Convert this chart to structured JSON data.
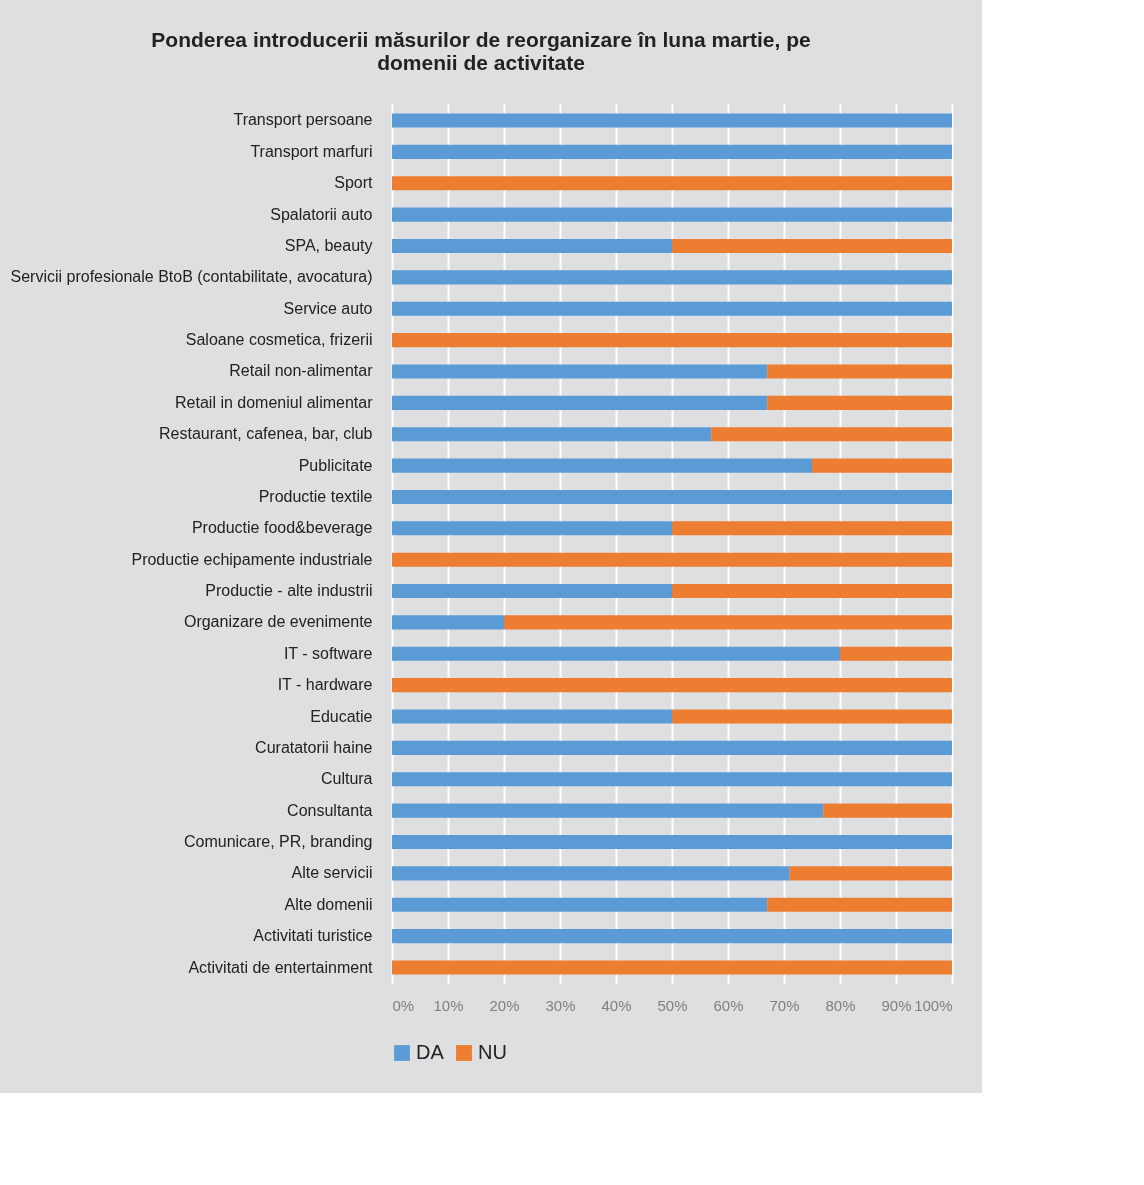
{
  "chart_data": {
    "type": "bar",
    "orientation": "horizontal",
    "stacked": true,
    "title": [
      "Ponderea introducerii măsurilor de reorganizare în luna martie, pe",
      "domenii de activitate"
    ],
    "categories": [
      "Transport persoane",
      "Transport marfuri",
      "Sport",
      "Spalatorii auto",
      "SPA, beauty",
      "Servicii profesionale BtoB (contabilitate, avocatura)",
      "Service auto",
      "Saloane cosmetica, frizerii",
      "Retail non-alimentar",
      "Retail in domeniul alimentar",
      "Restaurant, cafenea, bar, club",
      "Publicitate",
      "Productie textile",
      "Productie food&beverage",
      "Productie echipamente industriale",
      "Productie - alte industrii",
      "Organizare de evenimente",
      "IT - software",
      "IT - hardware",
      "Educatie",
      "Curatatorii haine",
      "Cultura",
      "Consultanta",
      "Comunicare, PR, branding",
      "Alte servicii",
      "Alte domenii",
      "Activitati turistice",
      "Activitati de entertainment"
    ],
    "series": [
      {
        "name": "DA",
        "color": "#5b9bd5",
        "values": [
          100,
          100,
          0,
          100,
          50,
          100,
          100,
          0,
          67,
          67,
          57,
          75,
          100,
          50,
          0,
          50,
          20,
          80,
          0,
          50,
          100,
          100,
          77,
          100,
          71,
          67,
          100,
          0
        ]
      },
      {
        "name": "NU",
        "color": "#ed7d31",
        "values": [
          0,
          0,
          100,
          0,
          50,
          0,
          0,
          100,
          33,
          33,
          43,
          25,
          0,
          50,
          100,
          50,
          80,
          20,
          100,
          50,
          0,
          0,
          23,
          0,
          29,
          33,
          0,
          100
        ]
      }
    ],
    "xlim": [
      0,
      100
    ],
    "xticks": [
      {
        "value": 0,
        "label": "0%"
      },
      {
        "value": 10,
        "label": "10%"
      },
      {
        "value": 20,
        "label": "20%"
      },
      {
        "value": 30,
        "label": "30%"
      },
      {
        "value": 40,
        "label": "40%"
      },
      {
        "value": 50,
        "label": "50%"
      },
      {
        "value": 60,
        "label": "60%"
      },
      {
        "value": 70,
        "label": "70%"
      },
      {
        "value": 80,
        "label": "80%"
      },
      {
        "value": 90,
        "label": "90%"
      },
      {
        "value": 100,
        "label": "100%"
      }
    ],
    "grid": "x",
    "legend": "bottom"
  }
}
